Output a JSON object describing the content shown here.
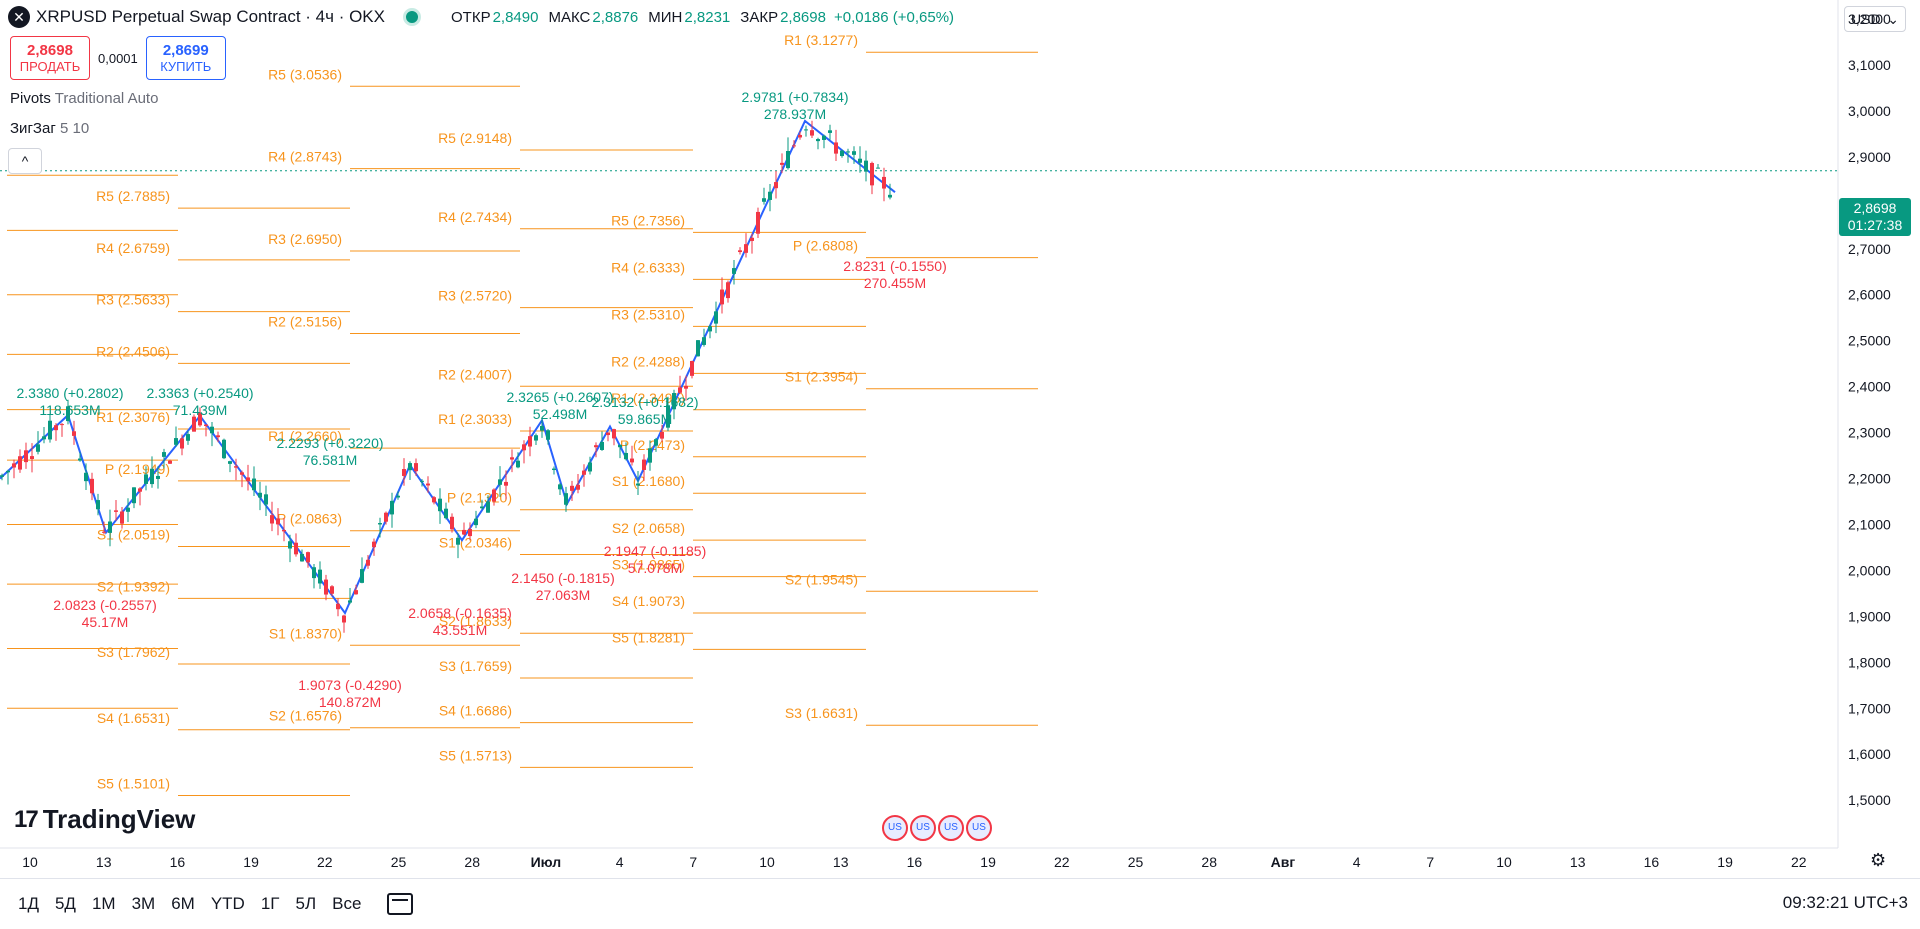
{
  "header": {
    "title": "XRPUSD Perpetual Swap Contract · 4ч · OKX",
    "ohlc": [
      {
        "label": "ОТКР",
        "value": "2,8490"
      },
      {
        "label": "МАКС",
        "value": "2,8876"
      },
      {
        "label": "МИН",
        "value": "2,8231"
      },
      {
        "label": "ЗАКР",
        "value": "2,8698"
      }
    ],
    "change": "+0,0186 (+0,65%)",
    "currency": "USD"
  },
  "trade": {
    "sell_price": "2,8698",
    "sell_label": "ПРОДАТЬ",
    "spread": "0,0001",
    "buy_price": "2,8699",
    "buy_label": "КУПИТЬ"
  },
  "indicators": [
    {
      "name": "Pivots",
      "params": "Traditional Auto"
    },
    {
      "name": "ЗигЗаг",
      "params": "5 10"
    }
  ],
  "price_tag": {
    "price": "2,8698",
    "timer": "01:27:38"
  },
  "price_axis": [
    "3,2000",
    "3,1000",
    "3,0000",
    "2,9000",
    "2,8000",
    "2,7000",
    "2,6000",
    "2,5000",
    "2,4000",
    "2,3000",
    "2,2000",
    "2,1000",
    "2,0000",
    "1,9000",
    "1,8000",
    "1,7000",
    "1,6000",
    "1,5000"
  ],
  "time_axis": [
    "10",
    "13",
    "16",
    "19",
    "22",
    "25",
    "28",
    "Июл",
    "4",
    "7",
    "10",
    "13",
    "16",
    "19",
    "22",
    "25",
    "28",
    "Авг",
    "4",
    "7",
    "10",
    "13",
    "16",
    "19",
    "22"
  ],
  "branding": "TradingView",
  "ranges": [
    "1Д",
    "5Д",
    "1М",
    "3М",
    "6М",
    "YTD",
    "1Г",
    "5Л",
    "Все"
  ],
  "clock": "09:32:21 UTC+3",
  "colors": {
    "up": "#089981",
    "down": "#f23645",
    "zigzag": "#2962ff",
    "pivot": "#f7941d"
  },
  "chart_data": {
    "type": "candlestick",
    "symbol": "XRPUSD",
    "interval": "4ч",
    "ylim": [
      1.48,
      3.24
    ],
    "pivot_levels": [
      {
        "label": "R5 (2.7885)",
        "value": 2.7885
      },
      {
        "label": "R4 (2.6759)",
        "value": 2.6759
      },
      {
        "label": "R3 (2.5633)",
        "value": 2.5633
      },
      {
        "label": "R2 (2.4506)",
        "value": 2.4506
      },
      {
        "label": "R1 (2.3076)",
        "value": 2.3076
      },
      {
        "label": "P (2.1949)",
        "value": 2.1949
      },
      {
        "label": "S1 (2.0519)",
        "value": 2.0519
      },
      {
        "label": "S2 (1.9392)",
        "value": 1.9392
      },
      {
        "label": "S3 (1.7962)",
        "value": 1.7962
      },
      {
        "label": "S4 (1.6531)",
        "value": 1.6531
      },
      {
        "label": "S5 (1.5101)",
        "value": 1.5101
      },
      {
        "label": "R5 (3.0536)",
        "value": 3.0536
      },
      {
        "label": "R4 (2.8743)",
        "value": 2.8743
      },
      {
        "label": "R3 (2.6950)",
        "value": 2.695
      },
      {
        "label": "R2 (2.5156)",
        "value": 2.5156
      },
      {
        "label": "R1 (2.2660)",
        "value": 2.266
      },
      {
        "label": "P (2.0863)",
        "value": 2.0863
      },
      {
        "label": "S1 (1.8370)",
        "value": 1.837
      },
      {
        "label": "S2 (1.6576)",
        "value": 1.6576
      },
      {
        "label": "R5 (2.9148)",
        "value": 2.9148
      },
      {
        "label": "R4 (2.7434)",
        "value": 2.7434
      },
      {
        "label": "R3 (2.5720)",
        "value": 2.572
      },
      {
        "label": "R2 (2.4007)",
        "value": 2.4007
      },
      {
        "label": "R1 (2.3033)",
        "value": 2.3033
      },
      {
        "label": "P (2.1320)",
        "value": 2.132
      },
      {
        "label": "S1 (2.0346)",
        "value": 2.0346
      },
      {
        "label": "S2 (1.8633)",
        "value": 1.8633
      },
      {
        "label": "S3 (1.7659)",
        "value": 1.7659
      },
      {
        "label": "S4 (1.6686)",
        "value": 1.6686
      },
      {
        "label": "S5 (1.5713)",
        "value": 1.5713
      },
      {
        "label": "R5 (2.7356)",
        "value": 2.7356
      },
      {
        "label": "R4 (2.6333)",
        "value": 2.6333
      },
      {
        "label": "R3 (2.5310)",
        "value": 2.531
      },
      {
        "label": "R2 (2.4288)",
        "value": 2.4288
      },
      {
        "label": "R1 (2.3495)",
        "value": 2.3495
      },
      {
        "label": "P (2.2473)",
        "value": 2.2473
      },
      {
        "label": "S1 (2.1680)",
        "value": 2.168
      },
      {
        "label": "S2 (2.0658)",
        "value": 2.0658
      },
      {
        "label": "S3 (1.9865)",
        "value": 1.9865
      },
      {
        "label": "S4 (1.9073)",
        "value": 1.9073
      },
      {
        "label": "S5 (1.8281)",
        "value": 1.8281
      },
      {
        "label": "R1 (3.1277)",
        "value": 3.1277
      },
      {
        "label": "P (2.6808)",
        "value": 2.6808
      },
      {
        "label": "S1 (2.3954)",
        "value": 2.3954
      },
      {
        "label": "S2 (1.9545)",
        "value": 1.9545
      },
      {
        "label": "S3 (1.6631)",
        "value": 1.6631
      }
    ],
    "zigzag_labels": [
      {
        "price": "2.3380 (+0.2802)",
        "volume": "118.653M",
        "dir": "up"
      },
      {
        "price": "2.3363 (+0.2540)",
        "volume": "71.439M",
        "dir": "up"
      },
      {
        "price": "2.0823 (-0.2557)",
        "volume": "45.17M",
        "dir": "down"
      },
      {
        "price": "1.9073 (-0.4290)",
        "volume": "140.872M",
        "dir": "down"
      },
      {
        "price": "2.2293 (+0.3220)",
        "volume": "76.581M",
        "dir": "up"
      },
      {
        "price": "2.0658 (-0.1635)",
        "volume": "43.551M",
        "dir": "down"
      },
      {
        "price": "2.3265 (+0.2607)",
        "volume": "52.498M",
        "dir": "up"
      },
      {
        "price": "2.1450 (-0.1815)",
        "volume": "27.063M",
        "dir": "down"
      },
      {
        "price": "2.3132 (+0.1682)",
        "volume": "59.865M",
        "dir": "up"
      },
      {
        "price": "2.1947 (-0.1185)",
        "volume": "57.078M",
        "dir": "down"
      },
      {
        "price": "2.9781 (+0.7834)",
        "volume": "278.937M",
        "dir": "up"
      },
      {
        "price": "2.8231 (-0.1550)",
        "volume": "270.455M",
        "dir": "down"
      }
    ],
    "zigzag_points": [
      2.2,
      2.338,
      2.0823,
      2.3363,
      1.9073,
      2.2293,
      2.0658,
      2.3265,
      2.145,
      2.3132,
      2.1947,
      2.9781,
      2.8231
    ]
  }
}
